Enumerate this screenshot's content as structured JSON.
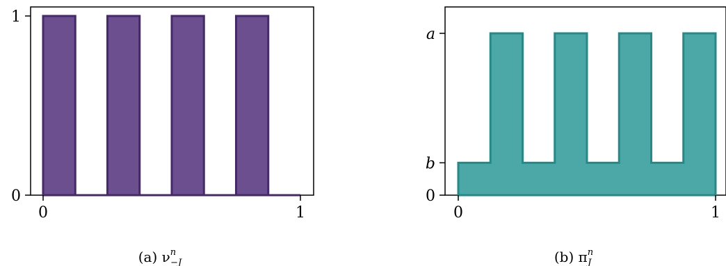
{
  "chart_data": [
    {
      "type": "bar",
      "caption": "(a) ν",
      "caption_sup": "n",
      "caption_sub": "−J",
      "xlim": [
        0,
        1
      ],
      "ylim": [
        0,
        1.05
      ],
      "x_ticks": [
        {
          "value": 0,
          "label": "0"
        },
        {
          "value": 1,
          "label": "1"
        }
      ],
      "y_ticks": [
        {
          "value": 0,
          "label": "0"
        },
        {
          "value": 1,
          "label": "1"
        }
      ],
      "bars": [
        {
          "x0": 0.0,
          "x1": 0.125,
          "value": 1
        },
        {
          "x0": 0.25,
          "x1": 0.375,
          "value": 1
        },
        {
          "x0": 0.5,
          "x1": 0.625,
          "value": 1
        },
        {
          "x0": 0.75,
          "x1": 0.875,
          "value": 1
        }
      ],
      "fill_color": "#6c4f8f",
      "stroke_color": "#45296b"
    },
    {
      "type": "area",
      "caption": "(b) π",
      "caption_sup": "n",
      "caption_sub": "J",
      "xlim": [
        0,
        1
      ],
      "ylim": [
        0,
        1.25
      ],
      "y_level_a": 1.0,
      "y_level_b": 0.2,
      "x_ticks": [
        {
          "value": 0,
          "label": "0"
        },
        {
          "value": 1,
          "label": "1"
        }
      ],
      "y_ticks": [
        {
          "value": 0,
          "label": "0"
        },
        {
          "value": 0.2,
          "label": "b"
        },
        {
          "value": 1.0,
          "label": "a"
        }
      ],
      "steps": [
        {
          "x0": 0.0,
          "x1": 0.125,
          "value": 0.2
        },
        {
          "x0": 0.125,
          "x1": 0.25,
          "value": 1.0
        },
        {
          "x0": 0.25,
          "x1": 0.375,
          "value": 0.2
        },
        {
          "x0": 0.375,
          "x1": 0.5,
          "value": 1.0
        },
        {
          "x0": 0.5,
          "x1": 0.625,
          "value": 0.2
        },
        {
          "x0": 0.625,
          "x1": 0.75,
          "value": 1.0
        },
        {
          "x0": 0.75,
          "x1": 0.875,
          "value": 0.2
        },
        {
          "x0": 0.875,
          "x1": 1.0,
          "value": 1.0
        }
      ],
      "fill_color": "#4ba8a6",
      "stroke_color": "#238a87"
    }
  ]
}
